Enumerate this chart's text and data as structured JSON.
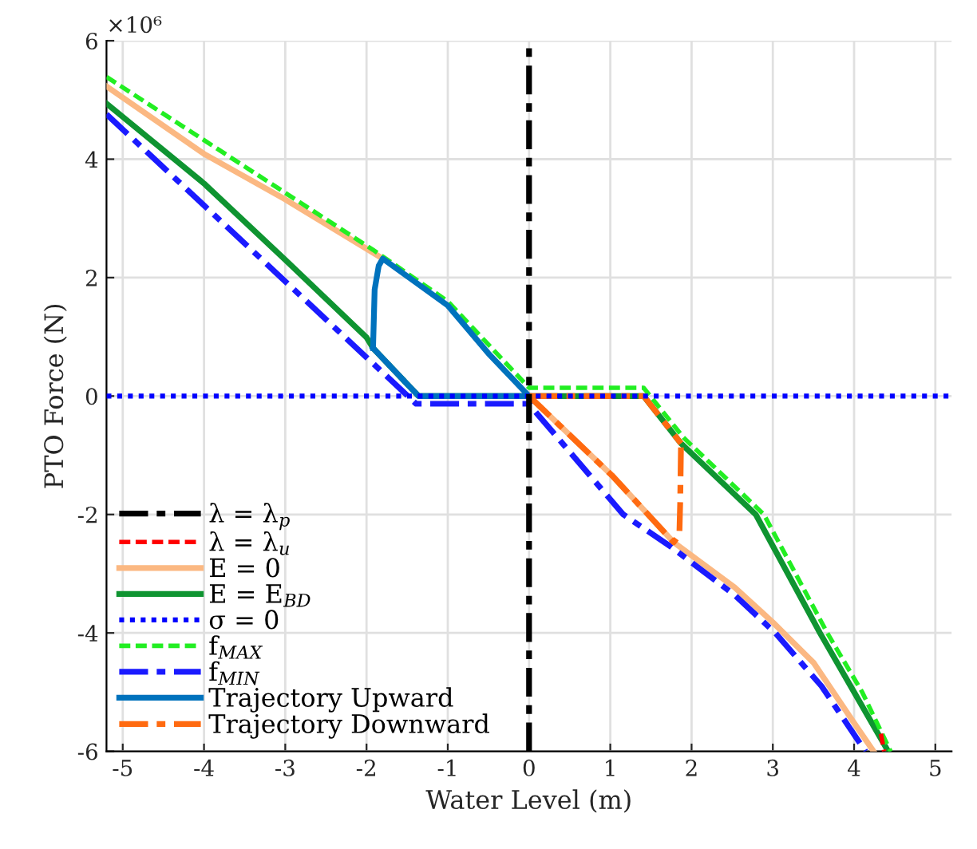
{
  "chart_data": {
    "type": "line",
    "xlabel": "Water Level (m)",
    "ylabel": "PTO Force (N)",
    "annotations": [
      "×10⁶"
    ],
    "xlim": [
      -5.2,
      5.2
    ],
    "xticks": [
      -5,
      -4,
      -3,
      -2,
      -1,
      0,
      1,
      2,
      3,
      4,
      5
    ],
    "ylim": [
      -6,
      6
    ],
    "yticks": [
      -6,
      -4,
      -2,
      0,
      2,
      4,
      6
    ],
    "grid": true,
    "legend": "bottom left",
    "marker": "none",
    "series": [
      {
        "name": "λ = λ$_{p}$",
        "color": "#000000",
        "line_style": "dashdot",
        "x": [
          0,
          0
        ],
        "values": [
          -6,
          6
        ]
      },
      {
        "name": "λ = λ$_{u}$",
        "color": "#ff0000",
        "line_style": "dashed",
        "x": [
          4.33,
          4.37
        ],
        "values": [
          -5.7,
          -6
        ]
      },
      {
        "name": "E = 0",
        "color": "#fbb882",
        "line_style": "solid",
        "x": [
          -5.2,
          -4,
          -3,
          -1.8,
          -1.0,
          -0.5,
          0,
          1.02,
          1.78,
          2.53,
          3.0,
          3.5,
          4.0,
          4.24
        ],
        "values": [
          5.23,
          4.09,
          3.32,
          2.32,
          null,
          null,
          0,
          -1.34,
          -2.47,
          -3.23,
          -3.82,
          -4.5,
          -5.52,
          -6
        ]
      },
      {
        "name": "E = E$_{BD}$",
        "color": "#0f9431",
        "line_style": "solid",
        "x": [
          -5.2,
          -4,
          -3,
          -2,
          -1.92,
          -1.36,
          0,
          1.41,
          1.87,
          2.79,
          3.58,
          4.0,
          4.42
        ],
        "values": [
          4.94,
          3.59,
          2.3,
          0.99,
          0.81,
          0,
          0,
          0,
          -0.8,
          -2,
          -4,
          -5,
          -6
        ]
      },
      {
        "name": "σ = 0",
        "color": "#0000ff",
        "line_style": "dotted",
        "x": [
          -5.2,
          5.2
        ],
        "values": [
          0,
          0
        ]
      },
      {
        "name": "f$_{MAX}$",
        "color": "#22ee22",
        "line_style": "dashed",
        "x": [
          -5.2,
          -1.92,
          -1.0,
          0,
          1.41,
          1.9,
          2.89,
          3.67,
          4.1,
          4.45
        ],
        "values": [
          5.39,
          2.47,
          1.6,
          0.14,
          0.14,
          -0.7,
          -2,
          -4,
          -5,
          -6
        ]
      },
      {
        "name": "f$_{MIN}$",
        "color": "#1a1aff",
        "line_style": "dashdot",
        "x": [
          -5.2,
          -1.39,
          0,
          0.1,
          1.16,
          1.75,
          2.53,
          3.03,
          3.6,
          4.14
        ],
        "values": [
          4.76,
          -0.13,
          -0.13,
          -0.3,
          -2,
          -2.55,
          -3.36,
          -4,
          -4.9,
          -6
        ]
      },
      {
        "name": "Trajectory Upward",
        "color": "#0072bd",
        "line_style": "solid",
        "x": [
          -1.92,
          -1.36,
          0
        ],
        "values": [
          0.81,
          0,
          0
        ]
      },
      {
        "color": "#0072bd",
        "line_style": "solid",
        "x": [
          -1.92,
          -1.9,
          -1.85,
          -1.8,
          -1.0,
          -0.5,
          0
        ],
        "values": [
          0.81,
          1.8,
          2.2,
          2.32,
          1.53,
          0.72,
          0
        ]
      },
      {
        "name": "Trajectory Downward",
        "color": "#ff6a10",
        "line_style": "dashdot",
        "x": [
          0,
          1.41,
          1.87
        ],
        "values": [
          0,
          0,
          -0.8
        ]
      },
      {
        "color": "#ff6a10",
        "line_style": "dashdot",
        "x": [
          0,
          1.02,
          1.78,
          1.85,
          1.86,
          1.87
        ],
        "values": [
          0,
          -1.34,
          -2.47,
          -2.34,
          -1.8,
          -0.8
        ]
      }
    ]
  }
}
